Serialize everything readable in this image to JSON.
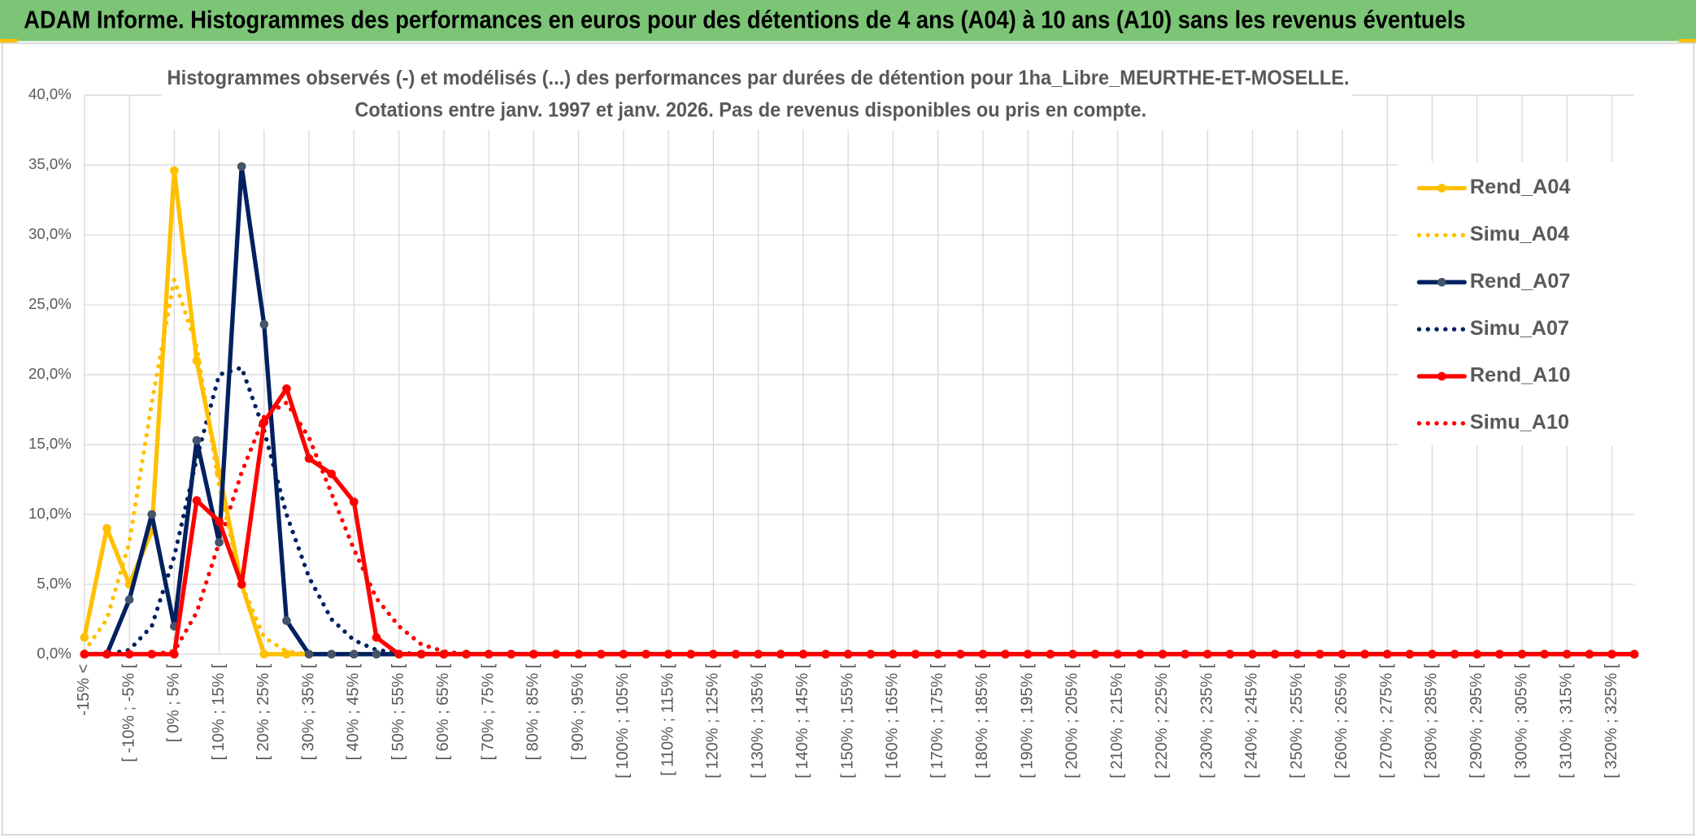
{
  "chart_data": {
    "type": "line",
    "title": "ADAM Informe. Histogrammes des performances en euros pour des détentions de 4 ans (A04) à 10 ans (A10) sans les revenus éventuels",
    "subtitle": [
      "Histogrammes observés (-) et modélisés (...) des performances par durées de détention pour 1ha_Libre_MEURTHE-ET-MOSELLE.",
      "Cotations entre janv. 1997 et janv. 2026. Pas de revenus disponibles ou pris en compte."
    ],
    "categories": [
      "-15% <",
      null,
      "[ -10% ; -5% [",
      null,
      "[ 0% ; 5% [",
      null,
      "[ 10% ; 15% [",
      null,
      "[ 20% ; 25% [",
      null,
      "[ 30% ; 35% [",
      null,
      "[ 40% ; 45% [",
      null,
      "[ 50% ; 55% [",
      null,
      "[ 60% ; 65% [",
      null,
      "[ 70% ; 75% [",
      null,
      "[ 80% ; 85% [",
      null,
      "[ 90% ; 95% [",
      null,
      "[ 100% ; 105% [",
      null,
      "[ 110% ; 115% [",
      null,
      "[ 120% ; 125% [",
      null,
      "[ 130% ; 135% [",
      null,
      "[ 140% ; 145% [",
      null,
      "[ 150% ; 155% [",
      null,
      "[ 160% ; 165% [",
      null,
      "[ 170% ; 175% [",
      null,
      "[ 180% ; 185% [",
      null,
      "[ 190% ; 195% [",
      null,
      "[ 200% ; 205% [",
      null,
      "[ 210% ; 215% [",
      null,
      "[ 220% ; 225% [",
      null,
      "[ 230% ; 235% [",
      null,
      "[ 240% ; 245% [",
      null,
      "[ 250% ; 255% [",
      null,
      "[ 260% ; 265% [",
      null,
      "[ 270% ; 275% [",
      null,
      "[ 280% ; 285% [",
      null,
      "[ 290% ; 295% [",
      null,
      "[ 300% ; 305% [",
      null,
      "[ 310% ; 315% [",
      null,
      "[ 320% ; 325% [",
      null
    ],
    "series": [
      {
        "name": "Simu_A04",
        "color": "#ffc000",
        "line_style": "dotted",
        "markers": false,
        "values": [
          0.2,
          2.5,
          8,
          18,
          26.8,
          22,
          12,
          5,
          1.2,
          0.2,
          0,
          0,
          0,
          0,
          0,
          0,
          0,
          0,
          0,
          0,
          0,
          0,
          0,
          0,
          0,
          0,
          0,
          0,
          0,
          0,
          0,
          0,
          0,
          0,
          0,
          0,
          0,
          0,
          0,
          0,
          0,
          0,
          0,
          0,
          0,
          0,
          0,
          0,
          0,
          0,
          0,
          0,
          0,
          0,
          0,
          0,
          0,
          0,
          0,
          0,
          0,
          0,
          0,
          0,
          0,
          0,
          0,
          0,
          0,
          0
        ]
      },
      {
        "name": "Simu_A07",
        "color": "#002060",
        "line_style": "dotted",
        "markers": false,
        "values": [
          0,
          0,
          0.3,
          2,
          7,
          14,
          20,
          20.5,
          16,
          10,
          5.5,
          2.5,
          1,
          0.3,
          0.1,
          0,
          0,
          0,
          0,
          0,
          0,
          0,
          0,
          0,
          0,
          0,
          0,
          0,
          0,
          0,
          0,
          0,
          0,
          0,
          0,
          0,
          0,
          0,
          0,
          0,
          0,
          0,
          0,
          0,
          0,
          0,
          0,
          0,
          0,
          0,
          0,
          0,
          0,
          0,
          0,
          0,
          0,
          0,
          0,
          0,
          0,
          0,
          0,
          0,
          0,
          0,
          0,
          0,
          0,
          0
        ]
      },
      {
        "name": "Simu_A10",
        "color": "#ff0000",
        "line_style": "dotted",
        "markers": false,
        "values": [
          0,
          0,
          0,
          0,
          0.2,
          3,
          8,
          13,
          17,
          18,
          15.5,
          11.5,
          7.5,
          4,
          2,
          0.7,
          0.2,
          0,
          0,
          0,
          0,
          0,
          0,
          0,
          0,
          0,
          0,
          0,
          0,
          0,
          0,
          0,
          0,
          0,
          0,
          0,
          0,
          0,
          0,
          0,
          0,
          0,
          0,
          0,
          0,
          0,
          0,
          0,
          0,
          0,
          0,
          0,
          0,
          0,
          0,
          0,
          0,
          0,
          0,
          0,
          0,
          0,
          0,
          0,
          0,
          0,
          0,
          0,
          0,
          0
        ]
      },
      {
        "name": "Rend_A04",
        "color": "#ffc000",
        "line_style": "solid",
        "markers": true,
        "values": [
          1.2,
          9,
          5,
          8.8,
          34.6,
          21,
          13,
          5,
          0,
          0,
          0,
          0,
          0,
          0,
          0,
          0,
          0,
          0,
          0,
          0,
          0,
          0,
          0,
          0,
          0,
          0,
          0,
          0,
          0,
          0,
          0,
          0,
          0,
          0,
          0,
          0,
          0,
          0,
          0,
          0,
          0,
          0,
          0,
          0,
          0,
          0,
          0,
          0,
          0,
          0,
          0,
          0,
          0,
          0,
          0,
          0,
          0,
          0,
          0,
          0,
          0,
          0,
          0,
          0,
          0,
          0,
          0,
          0,
          0,
          0
        ]
      },
      {
        "name": "Rend_A07",
        "color": "#002060",
        "line_style": "solid",
        "markers": true,
        "values": [
          0,
          0,
          3.9,
          10,
          2,
          15.3,
          8,
          34.9,
          23.6,
          2.4,
          0,
          0,
          0,
          0,
          0,
          0,
          0,
          0,
          0,
          0,
          0,
          0,
          0,
          0,
          0,
          0,
          0,
          0,
          0,
          0,
          0,
          0,
          0,
          0,
          0,
          0,
          0,
          0,
          0,
          0,
          0,
          0,
          0,
          0,
          0,
          0,
          0,
          0,
          0,
          0,
          0,
          0,
          0,
          0,
          0,
          0,
          0,
          0,
          0,
          0,
          0,
          0,
          0,
          0,
          0,
          0,
          0,
          0,
          0,
          0
        ]
      },
      {
        "name": "Rend_A10",
        "color": "#ff0000",
        "line_style": "solid",
        "markers": true,
        "values": [
          0,
          0,
          0,
          0,
          0,
          11,
          9.5,
          5,
          16.6,
          19,
          14,
          12.9,
          10.9,
          1.2,
          0,
          0,
          0,
          0,
          0,
          0,
          0,
          0,
          0,
          0,
          0,
          0,
          0,
          0,
          0,
          0,
          0,
          0,
          0,
          0,
          0,
          0,
          0,
          0,
          0,
          0,
          0,
          0,
          0,
          0,
          0,
          0,
          0,
          0,
          0,
          0,
          0,
          0,
          0,
          0,
          0,
          0,
          0,
          0,
          0,
          0,
          0,
          0,
          0,
          0,
          0,
          0,
          0,
          0,
          0,
          0
        ]
      }
    ],
    "legend_order": [
      "Rend_A04",
      "Simu_A04",
      "Rend_A07",
      "Simu_A07",
      "Rend_A10",
      "Simu_A10"
    ],
    "legend": "right",
    "ylim": [
      0,
      40
    ],
    "yticks": [
      {
        "value": 0,
        "label": "0,0%"
      },
      {
        "value": 5,
        "label": "5,0%"
      },
      {
        "value": 10,
        "label": "10,0%"
      },
      {
        "value": 15,
        "label": "15,0%"
      },
      {
        "value": 20,
        "label": "20,0%"
      },
      {
        "value": 25,
        "label": "25,0%"
      },
      {
        "value": 30,
        "label": "30,0%"
      },
      {
        "value": 35,
        "label": "35,0%"
      },
      {
        "value": 40,
        "label": "40,0%"
      }
    ],
    "grid": true
  }
}
